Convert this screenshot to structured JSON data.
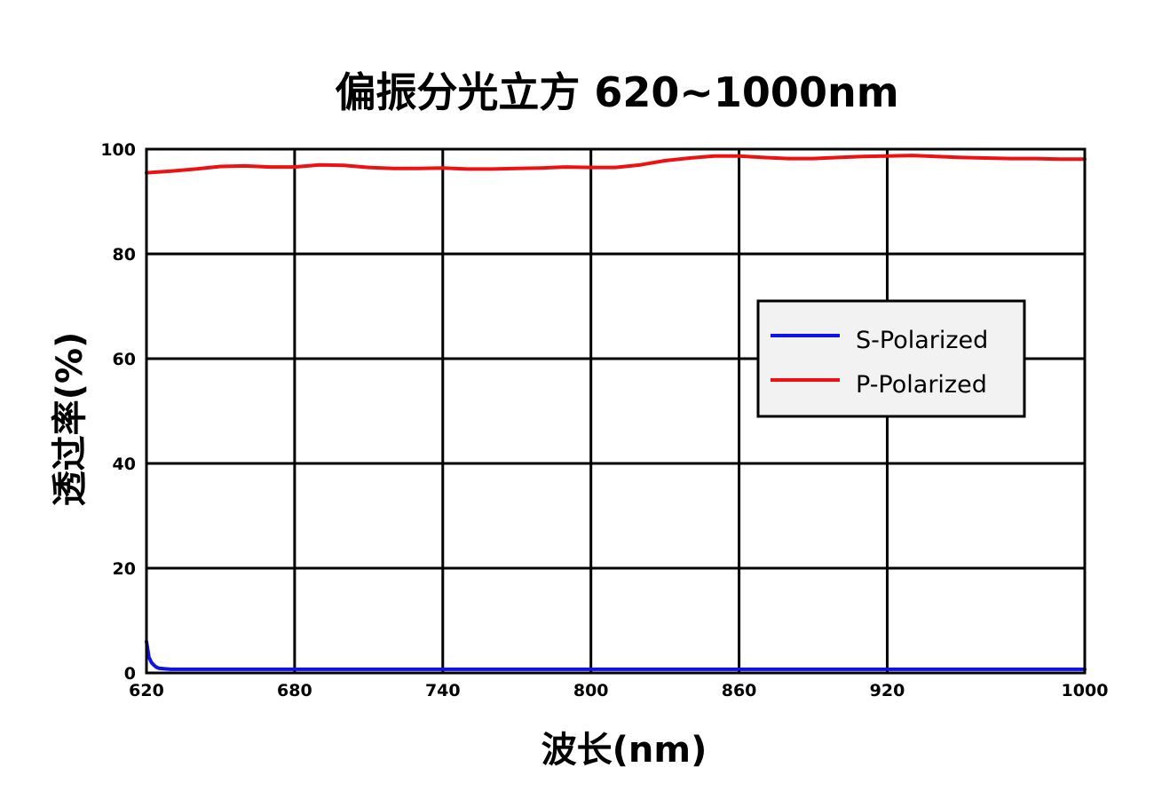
{
  "chart_data": {
    "type": "line",
    "title": "偏振分光立方 620~1000nm",
    "xlabel": "波长(nm)",
    "ylabel": "透过率(%)",
    "xlim": [
      620,
      1000
    ],
    "ylim": [
      0,
      100
    ],
    "xticks": [
      620,
      680,
      740,
      800,
      860,
      920,
      1000
    ],
    "yticks": [
      0,
      20,
      40,
      60,
      80,
      100
    ],
    "grid": true,
    "legend_position": "right",
    "series": [
      {
        "name": "S-Polarized",
        "color": "#1010e8",
        "x": [
          620,
          620.5,
          621,
          622,
          623,
          624,
          625,
          627,
          630,
          640,
          680,
          740,
          800,
          860,
          920,
          1000
        ],
        "y": [
          6.0,
          4.5,
          3.0,
          2.0,
          1.5,
          1.1,
          0.9,
          0.8,
          0.7,
          0.7,
          0.7,
          0.7,
          0.7,
          0.7,
          0.7,
          0.7
        ]
      },
      {
        "name": "P-Polarized",
        "color": "#ee1111",
        "x": [
          620,
          630,
          640,
          650,
          660,
          670,
          680,
          690,
          700,
          710,
          720,
          730,
          740,
          750,
          760,
          770,
          780,
          790,
          800,
          810,
          820,
          830,
          840,
          850,
          860,
          870,
          880,
          890,
          900,
          910,
          920,
          930,
          940,
          950,
          960,
          970,
          980,
          990,
          1000
        ],
        "y": [
          95.5,
          95.8,
          96.2,
          96.7,
          96.8,
          96.6,
          96.6,
          97.0,
          96.9,
          96.5,
          96.3,
          96.3,
          96.4,
          96.2,
          96.2,
          96.3,
          96.4,
          96.6,
          96.5,
          96.5,
          97.0,
          97.8,
          98.3,
          98.7,
          98.7,
          98.4,
          98.2,
          98.2,
          98.4,
          98.6,
          98.7,
          98.8,
          98.6,
          98.4,
          98.3,
          98.2,
          98.2,
          98.1,
          98.1
        ]
      }
    ]
  }
}
